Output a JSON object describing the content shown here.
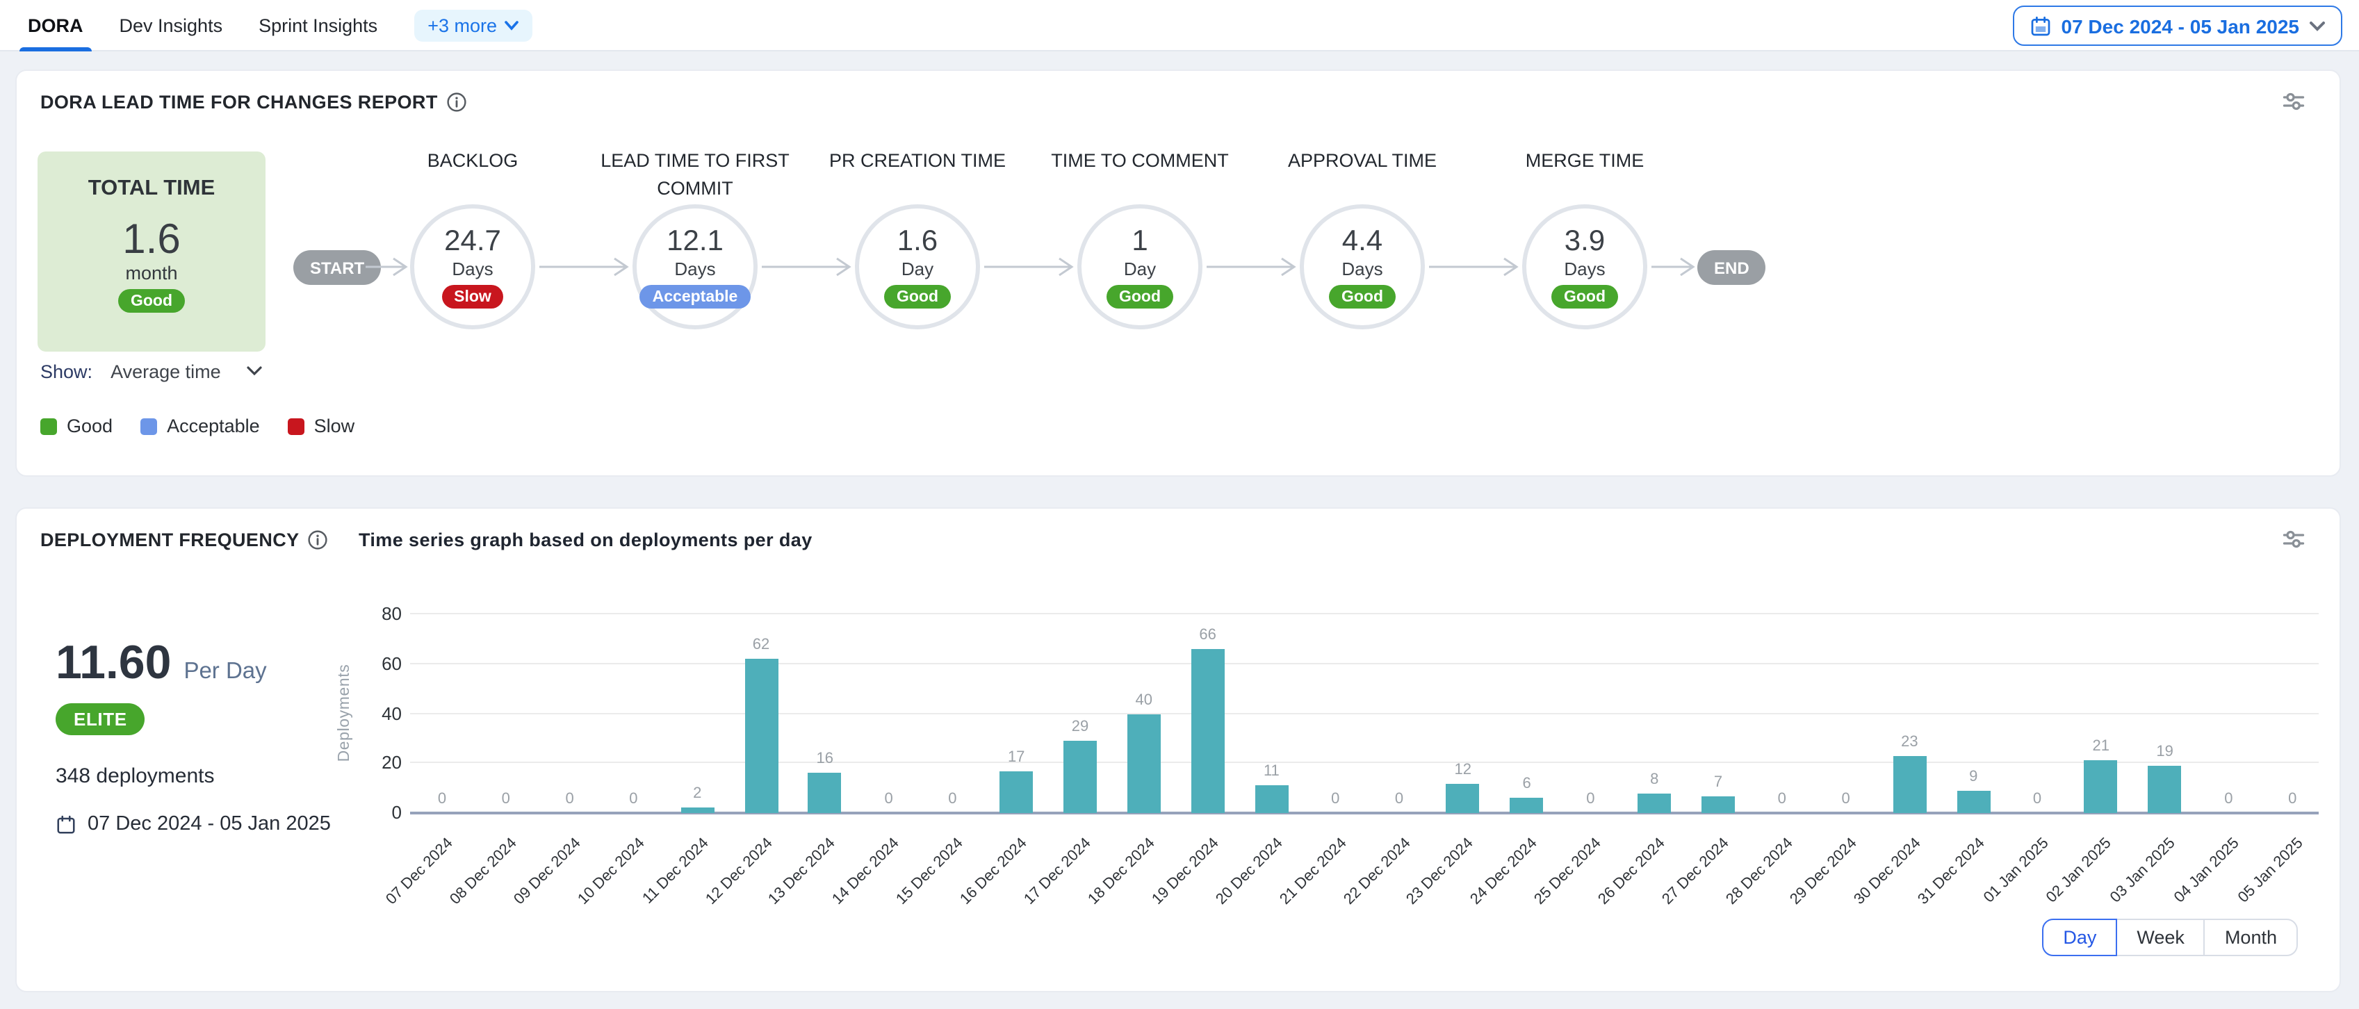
{
  "topbar": {
    "tabs": [
      {
        "label": "DORA",
        "active": true
      },
      {
        "label": "Dev Insights",
        "active": false
      },
      {
        "label": "Sprint Insights",
        "active": false
      }
    ],
    "more_label": "+3 more",
    "date_range": "07 Dec 2024 - 05 Jan 2025"
  },
  "lead_time": {
    "title": "DORA LEAD TIME FOR CHANGES REPORT",
    "total": {
      "label": "TOTAL TIME",
      "value": "1.6",
      "unit": "month",
      "badge": "Good"
    },
    "start_label": "START",
    "end_label": "END",
    "stages": [
      {
        "name": "BACKLOG",
        "value": "24.7",
        "unit": "Days",
        "badge": "Slow"
      },
      {
        "name": "LEAD TIME TO FIRST COMMIT",
        "value": "12.1",
        "unit": "Days",
        "badge": "Acceptable"
      },
      {
        "name": "PR CREATION TIME",
        "value": "1.6",
        "unit": "Day",
        "badge": "Good"
      },
      {
        "name": "TIME TO COMMENT",
        "value": "1",
        "unit": "Day",
        "badge": "Good"
      },
      {
        "name": "APPROVAL TIME",
        "value": "4.4",
        "unit": "Days",
        "badge": "Good"
      },
      {
        "name": "MERGE TIME",
        "value": "3.9",
        "unit": "Days",
        "badge": "Good"
      }
    ],
    "show_label": "Show:",
    "show_value": "Average time",
    "badge_colors": {
      "Good": "#47a62c",
      "Acceptable": "#6d96e8",
      "Slow": "#c8161e"
    },
    "legend": [
      {
        "label": "Good",
        "color": "#47a62c"
      },
      {
        "label": "Acceptable",
        "color": "#6d96e8"
      },
      {
        "label": "Slow",
        "color": "#c8161e"
      }
    ]
  },
  "deployment": {
    "title": "DEPLOYMENT FREQUENCY",
    "subtitle": "Time series graph based on deployments per day",
    "rate": "11.60",
    "rate_unit": "Per Day",
    "tier": "ELITE",
    "total": "348 deployments",
    "date_range": "07 Dec 2024 - 05 Jan 2025",
    "granularity": [
      {
        "label": "Day",
        "active": true
      },
      {
        "label": "Week",
        "active": false
      },
      {
        "label": "Month",
        "active": false
      }
    ]
  },
  "chart_data": {
    "type": "bar",
    "title": "Time series graph based on deployments per day",
    "xlabel": "",
    "ylabel": "Deployments",
    "ylim": [
      0,
      80
    ],
    "yticks": [
      0,
      20,
      40,
      60,
      80
    ],
    "grid": true,
    "bar_color": "#4eafba",
    "categories": [
      "07 Dec 2024",
      "08 Dec 2024",
      "09 Dec 2024",
      "10 Dec 2024",
      "11 Dec 2024",
      "12 Dec 2024",
      "13 Dec 2024",
      "14 Dec 2024",
      "15 Dec 2024",
      "16 Dec 2024",
      "17 Dec 2024",
      "18 Dec 2024",
      "19 Dec 2024",
      "20 Dec 2024",
      "21 Dec 2024",
      "22 Dec 2024",
      "23 Dec 2024",
      "24 Dec 2024",
      "25 Dec 2024",
      "26 Dec 2024",
      "27 Dec 2024",
      "28 Dec 2024",
      "29 Dec 2024",
      "30 Dec 2024",
      "31 Dec 2024",
      "01 Jan 2025",
      "02 Jan 2025",
      "03 Jan 2025",
      "04 Jan 2025",
      "05 Jan 2025"
    ],
    "values": [
      0,
      0,
      0,
      0,
      2,
      62,
      16,
      0,
      0,
      17,
      29,
      40,
      66,
      11,
      0,
      0,
      12,
      6,
      0,
      8,
      7,
      0,
      0,
      23,
      9,
      0,
      21,
      19,
      0,
      0
    ]
  }
}
